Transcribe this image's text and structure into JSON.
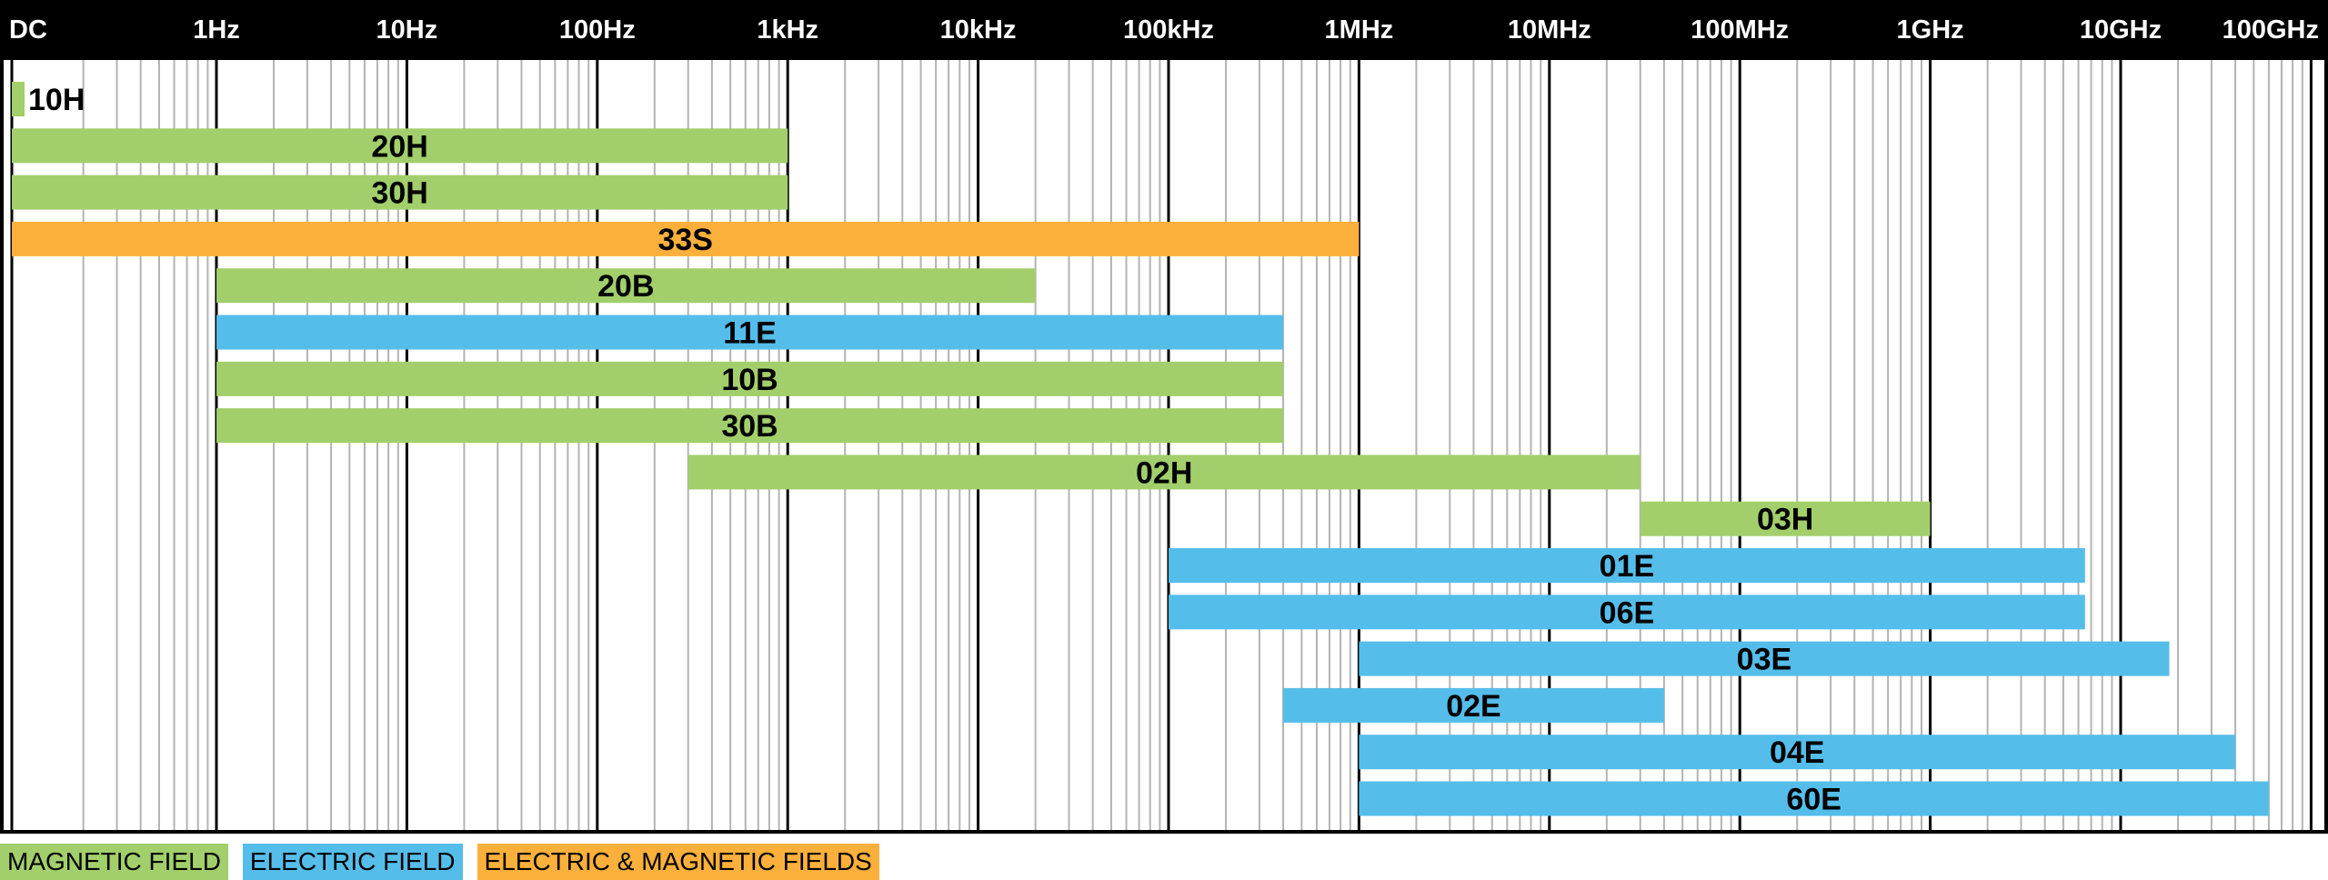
{
  "chart_data": {
    "type": "bar",
    "subtype": "frequency-range",
    "x_scale": "log",
    "x_ticks": [
      {
        "label": "DC",
        "hz": 0
      },
      {
        "label": "1Hz",
        "hz": 1
      },
      {
        "label": "10Hz",
        "hz": 10
      },
      {
        "label": "100Hz",
        "hz": 100
      },
      {
        "label": "1kHz",
        "hz": 1000
      },
      {
        "label": "10kHz",
        "hz": 10000
      },
      {
        "label": "100kHz",
        "hz": 100000
      },
      {
        "label": "1MHz",
        "hz": 1000000
      },
      {
        "label": "10MHz",
        "hz": 10000000
      },
      {
        "label": "100MHz",
        "hz": 100000000
      },
      {
        "label": "1GHz",
        "hz": 1000000000
      },
      {
        "label": "10GHz",
        "hz": 10000000000
      },
      {
        "label": "100GHz",
        "hz": 100000000000
      }
    ],
    "xlim_hz": [
      0,
      150000000000
    ],
    "grid": true,
    "legend_position": "bottom-left",
    "colors": {
      "magnetic": "#a2cf6b",
      "electric": "#55bdea",
      "both": "#fbb03b",
      "axis": "#000000",
      "major_grid": "#000000",
      "minor_grid": "#b3b3b3"
    },
    "bars": [
      {
        "label": "10H",
        "field": "magnetic",
        "start_hz": 0,
        "end_hz": "DC"
      },
      {
        "label": "20H",
        "field": "magnetic",
        "start_hz": 0,
        "end_hz": 1000
      },
      {
        "label": "30H",
        "field": "magnetic",
        "start_hz": 0,
        "end_hz": 1000
      },
      {
        "label": "33S",
        "field": "both",
        "start_hz": 0,
        "end_hz": 1000000
      },
      {
        "label": "20B",
        "field": "magnetic",
        "start_hz": 1,
        "end_hz": 20000
      },
      {
        "label": "11E",
        "field": "electric",
        "start_hz": 1,
        "end_hz": 400000
      },
      {
        "label": "10B",
        "field": "magnetic",
        "start_hz": 1,
        "end_hz": 400000
      },
      {
        "label": "30B",
        "field": "magnetic",
        "start_hz": 1,
        "end_hz": 400000
      },
      {
        "label": "02H",
        "field": "magnetic",
        "start_hz": 300,
        "end_hz": 30000000
      },
      {
        "label": "03H",
        "field": "magnetic",
        "start_hz": 30000000,
        "end_hz": 1000000000
      },
      {
        "label": "01E",
        "field": "electric",
        "start_hz": 100000,
        "end_hz": 6500000000
      },
      {
        "label": "06E",
        "field": "electric",
        "start_hz": 100000,
        "end_hz": 6500000000
      },
      {
        "label": "03E",
        "field": "electric",
        "start_hz": 1000000,
        "end_hz": 18000000000
      },
      {
        "label": "02E",
        "field": "electric",
        "start_hz": 400000,
        "end_hz": 40000000
      },
      {
        "label": "04E",
        "field": "electric",
        "start_hz": 1000000,
        "end_hz": 40000000000
      },
      {
        "label": "60E",
        "field": "electric",
        "start_hz": 1000000,
        "end_hz": 60000000000
      }
    ]
  },
  "legend": {
    "magnetic": "MAGNETIC FIELD",
    "electric": "ELECTRIC FIELD",
    "both": "ELECTRIC & MAGNETIC FIELDS"
  }
}
